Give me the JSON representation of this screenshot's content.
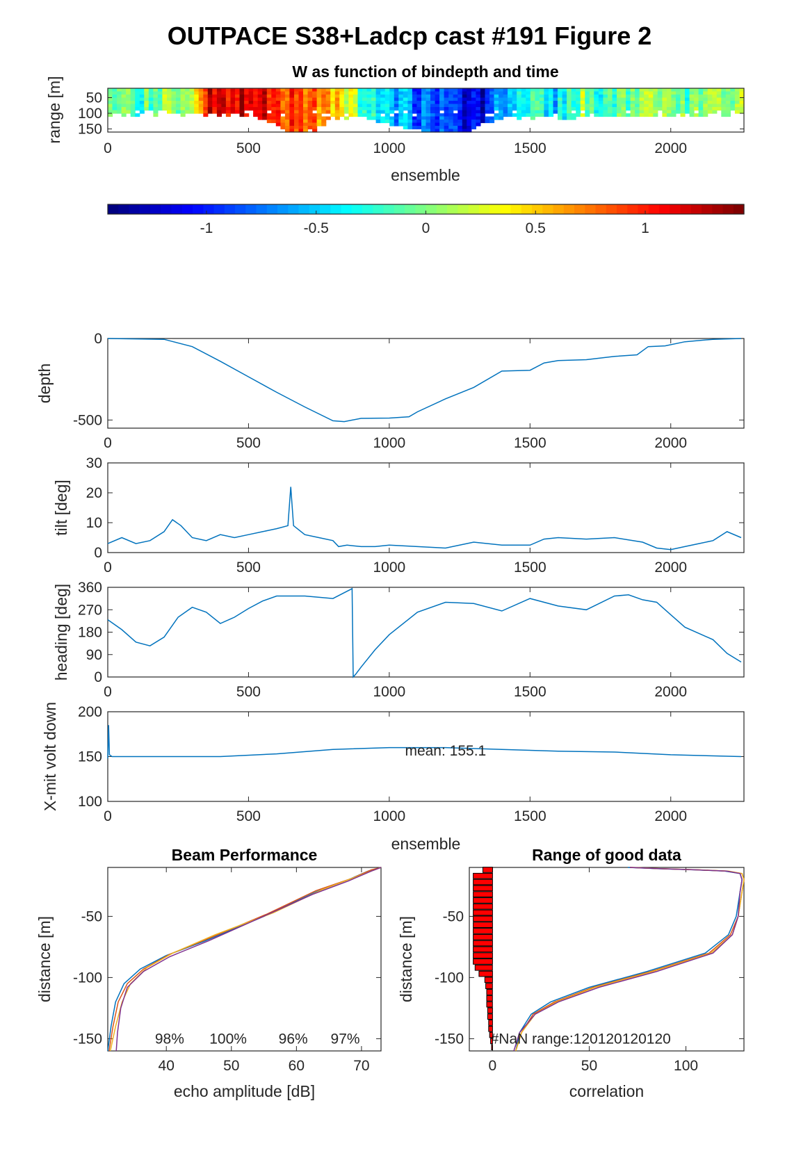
{
  "figure": {
    "title": "OUTPACE S38+Ladcp cast #191 Figure 2"
  },
  "chart_data": [
    {
      "type": "heatmap",
      "id": "w-heatmap",
      "title": "W as function of bindepth and time",
      "xlabel": "ensemble",
      "ylabel": "range [m]",
      "xlim": [
        0,
        2260
      ],
      "ylim": [
        20,
        160
      ],
      "xticks": [
        "0",
        "500",
        "1000",
        "1500",
        "2000"
      ],
      "yticks": [
        "50",
        "100",
        "150"
      ],
      "colorbar": {
        "colormap": "jet",
        "clim": [
          -1.45,
          1.45
        ],
        "ticks": [
          "-1",
          "-0.5",
          "0",
          "0.5",
          "1"
        ]
      },
      "w_profile": {
        "x": [
          0,
          60,
          100,
          200,
          280,
          340,
          420,
          500,
          560,
          620,
          680,
          740,
          800,
          860,
          920,
          980,
          1040,
          1100,
          1160,
          1220,
          1280,
          1330,
          1400,
          1460,
          1520,
          1580,
          1640,
          1700,
          1760,
          1820,
          1880,
          1940,
          2000,
          2060,
          2120,
          2180,
          2250
        ],
        "values": [
          0.0,
          0.2,
          -0.3,
          0.1,
          -0.2,
          1.1,
          1.2,
          1.3,
          1.2,
          1.0,
          0.9,
          0.8,
          0.6,
          0.2,
          -0.3,
          -0.5,
          -0.6,
          -0.8,
          -0.9,
          -1.0,
          -1.1,
          -1.2,
          -0.6,
          -0.4,
          0.0,
          -0.5,
          -0.2,
          0.1,
          -0.3,
          -0.1,
          0.0,
          0.3,
          0.1,
          -0.2,
          0.0,
          0.1,
          0.0
        ]
      },
      "valid_range_max": {
        "x": [
          0,
          500,
          600,
          640,
          700,
          760,
          800,
          900,
          1000,
          1100,
          1200,
          1280,
          1320,
          1400,
          2250
        ],
        "values": [
          100,
          100,
          130,
          160,
          160,
          140,
          110,
          110,
          130,
          150,
          160,
          160,
          130,
          110,
          100
        ]
      }
    },
    {
      "type": "line",
      "id": "depth",
      "xlabel": "",
      "ylabel": "depth",
      "xlim": [
        0,
        2260
      ],
      "ylim": [
        -550,
        0
      ],
      "xticks": [
        "0",
        "500",
        "1000",
        "1500",
        "2000"
      ],
      "yticks": [
        "0",
        "-500"
      ],
      "x": [
        0,
        200,
        300,
        400,
        500,
        600,
        700,
        800,
        840,
        900,
        1000,
        1070,
        1100,
        1200,
        1300,
        1400,
        1500,
        1550,
        1600,
        1700,
        1800,
        1880,
        1920,
        1980,
        2050,
        2150,
        2250
      ],
      "y": [
        0,
        -5,
        -50,
        -140,
        -235,
        -330,
        -420,
        -505,
        -510,
        -490,
        -488,
        -480,
        -450,
        -370,
        -300,
        -200,
        -195,
        -150,
        -135,
        -130,
        -110,
        -100,
        -50,
        -45,
        -20,
        -5,
        0
      ]
    },
    {
      "type": "line",
      "id": "tilt",
      "xlabel": "",
      "ylabel": "tilt [deg]",
      "xlim": [
        0,
        2260
      ],
      "ylim": [
        0,
        30
      ],
      "xticks": [
        "0",
        "500",
        "1000",
        "1500",
        "2000"
      ],
      "yticks": [
        "0",
        "10",
        "20",
        "30"
      ],
      "x": [
        0,
        50,
        100,
        150,
        200,
        230,
        260,
        300,
        350,
        400,
        450,
        500,
        550,
        600,
        640,
        650,
        660,
        700,
        750,
        800,
        820,
        850,
        900,
        950,
        1000,
        1100,
        1200,
        1300,
        1400,
        1500,
        1550,
        1600,
        1700,
        1800,
        1900,
        1950,
        2000,
        2050,
        2100,
        2150,
        2200,
        2250
      ],
      "y": [
        3,
        5,
        3,
        4,
        7,
        11,
        9,
        5,
        4,
        6,
        5,
        6,
        7,
        8,
        9,
        22,
        9,
        6,
        5,
        4,
        2,
        2.5,
        2,
        2,
        2.5,
        2,
        1.5,
        3.5,
        2.5,
        2.5,
        4.5,
        5,
        4.5,
        5,
        3.5,
        1.5,
        1,
        2,
        3,
        4,
        7,
        5
      ]
    },
    {
      "type": "line",
      "id": "heading",
      "xlabel": "",
      "ylabel": "heading [deg]",
      "xlim": [
        0,
        2260
      ],
      "ylim": [
        0,
        360
      ],
      "xticks": [
        "0",
        "500",
        "1000",
        "1500",
        "2000"
      ],
      "yticks": [
        "0",
        "90",
        "180",
        "270",
        "360"
      ],
      "x": [
        0,
        50,
        100,
        150,
        200,
        250,
        300,
        350,
        400,
        450,
        500,
        550,
        600,
        700,
        800,
        860,
        868,
        872,
        880,
        900,
        950,
        1000,
        1100,
        1200,
        1300,
        1400,
        1500,
        1600,
        1700,
        1800,
        1850,
        1900,
        1950,
        2000,
        2050,
        2100,
        2150,
        2200,
        2250
      ],
      "y": [
        230,
        190,
        140,
        125,
        160,
        240,
        280,
        260,
        215,
        240,
        275,
        305,
        325,
        325,
        315,
        350,
        355,
        0,
        10,
        40,
        110,
        170,
        260,
        300,
        295,
        265,
        315,
        285,
        270,
        325,
        330,
        310,
        300,
        250,
        200,
        175,
        150,
        95,
        60
      ]
    },
    {
      "type": "line",
      "id": "xmit-volt",
      "xlabel": "ensemble",
      "ylabel": "X-mit volt down",
      "xlim": [
        0,
        2260
      ],
      "ylim": [
        100,
        200
      ],
      "xticks": [
        "0",
        "500",
        "1000",
        "1500",
        "2000"
      ],
      "yticks": [
        "100",
        "150",
        "200"
      ],
      "annotation": "mean: 155.1",
      "x": [
        0,
        3,
        6,
        15,
        40,
        400,
        600,
        800,
        1000,
        1200,
        1400,
        1600,
        1800,
        2000,
        2250
      ],
      "y": [
        148,
        185,
        152,
        150,
        150,
        150,
        153,
        158,
        160,
        160,
        158,
        156,
        155,
        152,
        150
      ]
    },
    {
      "type": "line",
      "id": "beam-performance",
      "title": "Beam Performance",
      "xlabel": "echo amplitude [dB]",
      "ylabel": "distance [m]",
      "xlim": [
        31,
        73
      ],
      "ylim": [
        -160,
        -10
      ],
      "xticks": [
        "40",
        "50",
        "60",
        "70"
      ],
      "yticks": [
        "-50",
        "-100",
        "-150"
      ],
      "beam_percent": [
        "98%",
        "100%",
        "96%",
        "97%"
      ],
      "series": [
        {
          "color": "#0072BD",
          "x": [
            31,
            31.5,
            32.2,
            33.5,
            36,
            40,
            46,
            55,
            63,
            68,
            71,
            73
          ],
          "y": [
            -160,
            -140,
            -120,
            -105,
            -93,
            -82,
            -70,
            -50,
            -30,
            -20,
            -13,
            -10
          ]
        },
        {
          "color": "#D95319",
          "x": [
            31.2,
            31.8,
            32.6,
            34,
            36.5,
            40.5,
            47,
            55.5,
            63,
            68.5,
            71.5,
            73
          ],
          "y": [
            -160,
            -140,
            -120,
            -105,
            -93,
            -81,
            -67,
            -48,
            -29,
            -19,
            -12,
            -10
          ]
        },
        {
          "color": "#EDB120",
          "x": [
            31.4,
            32.2,
            33.2,
            34.5,
            37,
            41,
            47.5,
            56.5,
            64,
            69,
            72,
            73
          ],
          "y": [
            -160,
            -140,
            -120,
            -105,
            -92,
            -80,
            -65,
            -47,
            -28,
            -18,
            -12,
            -10
          ]
        },
        {
          "color": "#7E2F8E",
          "x": [
            32.3,
            32.5,
            33,
            34,
            36.5,
            40.5,
            46.5,
            54.5,
            62.5,
            68,
            71.5,
            73
          ],
          "y": [
            -160,
            -145,
            -125,
            -108,
            -95,
            -83,
            -70,
            -51,
            -32,
            -21,
            -13,
            -10
          ]
        }
      ]
    },
    {
      "type": "line",
      "id": "range-good-data",
      "title": "Range of good data",
      "xlabel": "correlation",
      "ylabel": "distance [m]",
      "xlim": [
        -12,
        130
      ],
      "ylim": [
        -160,
        -10
      ],
      "xticks": [
        "0",
        "50",
        "100"
      ],
      "yticks": [
        "-50",
        "-100",
        "-150"
      ],
      "annotation": "#NaN range:120120120120",
      "good_data_bars": {
        "depths": [
          -12,
          -17,
          -22,
          -27,
          -32,
          -37,
          -42,
          -47,
          -52,
          -57,
          -62,
          -67,
          -72,
          -77,
          -82,
          -87,
          -92,
          -97,
          -102,
          -107,
          -112,
          -117,
          -122,
          -127,
          -132,
          -137,
          -142,
          -147,
          -152,
          -157
        ],
        "extent": [
          5,
          10,
          10,
          10,
          10,
          10,
          10,
          10,
          10,
          10,
          10,
          10,
          10,
          10,
          10,
          10,
          9,
          7,
          4,
          3.5,
          3,
          3,
          3,
          2.5,
          2.5,
          2,
          2,
          1.5,
          1,
          0.5
        ]
      },
      "series": [
        {
          "color": "#0072BD",
          "x": [
            12,
            14,
            20,
            30,
            50,
            80,
            110,
            122,
            126,
            128,
            129,
            128,
            120,
            105,
            85,
            70
          ],
          "y": [
            -160,
            -145,
            -130,
            -120,
            -108,
            -95,
            -80,
            -65,
            -50,
            -30,
            -20,
            -15,
            -13,
            -12,
            -11,
            -10
          ]
        },
        {
          "color": "#D95319",
          "x": [
            12,
            15,
            21,
            32,
            52,
            82,
            112,
            123,
            127,
            129,
            130,
            129,
            121,
            106,
            86,
            71
          ],
          "y": [
            -160,
            -145,
            -130,
            -120,
            -108,
            -95,
            -80,
            -65,
            -50,
            -30,
            -20,
            -15,
            -13,
            -12,
            -11,
            -10
          ]
        },
        {
          "color": "#EDB120",
          "x": [
            12,
            15,
            22,
            33,
            53,
            83,
            113,
            124,
            127,
            129,
            130,
            129,
            122,
            107,
            87,
            72
          ],
          "y": [
            -160,
            -145,
            -130,
            -120,
            -108,
            -95,
            -80,
            -65,
            -50,
            -30,
            -20,
            -15,
            -13,
            -12,
            -11,
            -10
          ]
        },
        {
          "color": "#7E2F8E",
          "x": [
            11,
            14,
            22,
            34,
            55,
            85,
            114,
            124,
            127,
            128,
            129,
            128,
            121,
            106,
            86,
            71
          ],
          "y": [
            -160,
            -145,
            -130,
            -120,
            -108,
            -95,
            -80,
            -65,
            -50,
            -30,
            -20,
            -15,
            -13,
            -12,
            -11,
            -10
          ]
        }
      ]
    }
  ]
}
